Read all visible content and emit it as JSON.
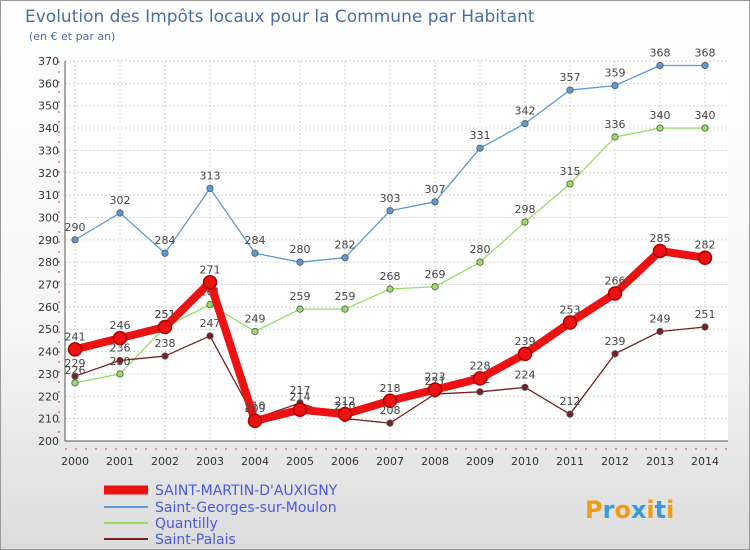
{
  "header": {
    "title": "Evolution des Impôts locaux pour la Commune par Habitant",
    "subtitle": "(en € et par an)"
  },
  "watermark": {
    "text": "Proxiti"
  },
  "chart_data": {
    "type": "line",
    "title": "Evolution des Impôts locaux pour la Commune par Habitant",
    "subtitle": "(en € et par an)",
    "x": [
      "2000",
      "2001",
      "2002",
      "2003",
      "2004",
      "2005",
      "2006",
      "2007",
      "2008",
      "2009",
      "2010",
      "2011",
      "2012",
      "2013",
      "2014"
    ],
    "ylim": [
      200,
      370
    ],
    "yticks": [
      200,
      210,
      220,
      230,
      240,
      250,
      260,
      270,
      280,
      290,
      300,
      310,
      320,
      330,
      340,
      350,
      360,
      370
    ],
    "grid": true,
    "legend": "bottom-left",
    "series": [
      {
        "name": "SAINT-MARTIN-D'AUXIGNY",
        "color": "#ee1111",
        "emphasis": true,
        "values": [
          241,
          246,
          251,
          271,
          209,
          214,
          212,
          218,
          223,
          228,
          239,
          253,
          266,
          285,
          282
        ]
      },
      {
        "name": "Saint-Georges-sur-Moulon",
        "color": "#5b9bd5",
        "values": [
          290,
          302,
          284,
          313,
          284,
          280,
          282,
          303,
          307,
          331,
          342,
          357,
          359,
          368,
          368
        ]
      },
      {
        "name": "Quantilly",
        "color": "#99dd66",
        "values": [
          226,
          230,
          251,
          261,
          249,
          259,
          259,
          268,
          269,
          280,
          298,
          315,
          336,
          340,
          340
        ]
      },
      {
        "name": "Saint-Palais",
        "color": "#772222",
        "values": [
          229,
          236,
          238,
          247,
          210,
          217,
          210,
          208,
          221,
          222,
          224,
          212,
          239,
          249,
          251
        ]
      }
    ]
  }
}
